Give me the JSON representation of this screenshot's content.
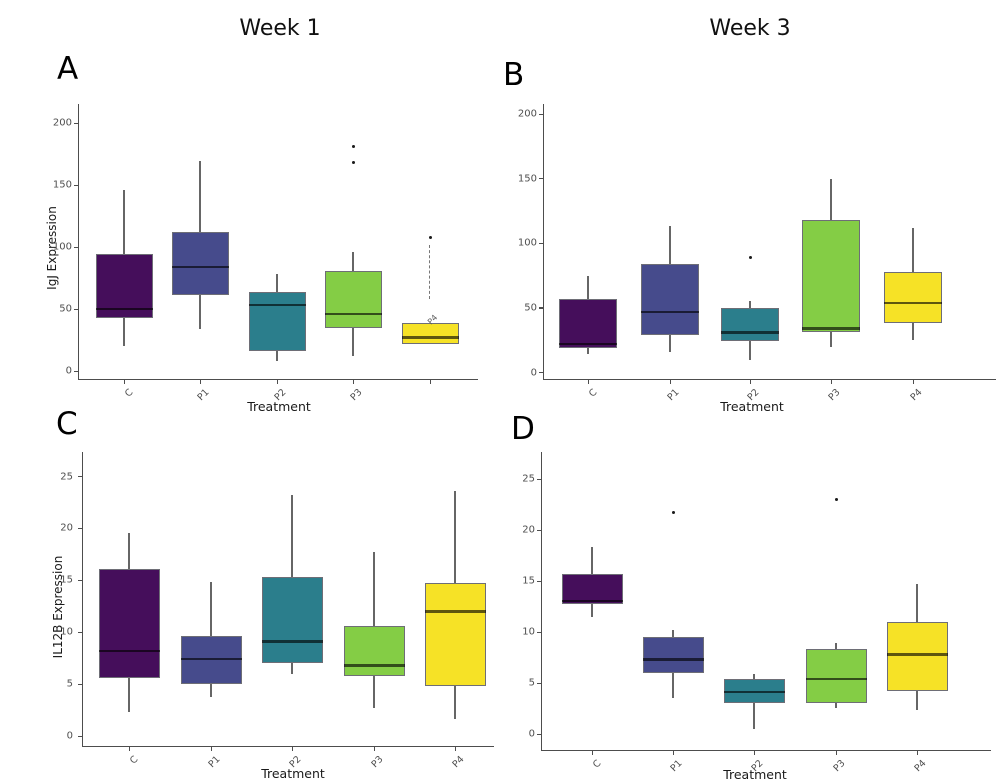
{
  "titles": {
    "week1": "Week 1",
    "week3": "Week 3"
  },
  "colors": {
    "C": "#450E5B",
    "P1": "#464B8C",
    "P2": "#2B7E8C",
    "P3": "#84CD45",
    "P4": "#F6E226",
    "box_border": "#6e6e76",
    "median": "rgba(0,0,0,0.62)",
    "whisker": "#666666",
    "axis_line": "#4d4d4d",
    "tick_label": "#4f4f4f",
    "axis_title": "#1a1a1a",
    "outlier": "#1a1a1a"
  },
  "chart_data": [
    {
      "type": "box",
      "panel": "A",
      "column_title": "Week 1",
      "ylabel": "IgJ Expression",
      "xlabel": "Treatment",
      "ylim": [
        0,
        215
      ],
      "yticks": [
        0,
        50,
        100,
        150,
        200
      ],
      "categories": [
        "C",
        "P1",
        "P2",
        "P3",
        "P4"
      ],
      "x_tick_labels": [
        "C",
        "P1",
        "P2",
        "P3",
        null
      ],
      "boxes": [
        {
          "category": "C",
          "color_key": "C",
          "whisker_lo": 20,
          "q1": 43,
          "median": 50,
          "q3": 94,
          "whisker_hi": 146,
          "outliers": []
        },
        {
          "category": "P1",
          "color_key": "P1",
          "whisker_lo": 34,
          "q1": 61,
          "median": 84,
          "q3": 112,
          "whisker_hi": 169,
          "outliers": []
        },
        {
          "category": "P2",
          "color_key": "P2",
          "whisker_lo": 8,
          "q1": 16,
          "median": 53,
          "q3": 64,
          "whisker_hi": 78,
          "outliers": []
        },
        {
          "category": "P3",
          "color_key": "P3",
          "whisker_lo": 12,
          "q1": 35,
          "median": 46,
          "q3": 81,
          "whisker_hi": 96,
          "outliers": [
            168,
            181
          ]
        },
        {
          "category": "P4",
          "color_key": "P4",
          "whisker_lo": null,
          "q1": 22,
          "median": 27,
          "q3": 39,
          "whisker_hi": 102,
          "whisker_hi_from": 58,
          "whisker_hi_dashed": true,
          "outliers": [
            108
          ]
        }
      ],
      "annotations": [
        {
          "text": "P4",
          "category_index": 4,
          "y": 47
        }
      ]
    },
    {
      "type": "box",
      "panel": "B",
      "column_title": "Week 3",
      "ylabel": null,
      "xlabel": "Treatment",
      "ylim": [
        0,
        215
      ],
      "yticks": [
        0,
        50,
        100,
        150,
        200
      ],
      "categories": [
        "C",
        "P1",
        "P2",
        "P3",
        "P4"
      ],
      "x_tick_labels": [
        "C",
        "P1",
        "P2",
        "P3",
        "P4"
      ],
      "boxes": [
        {
          "category": "C",
          "color_key": "C",
          "whisker_lo": 14,
          "q1": 19,
          "median": 22,
          "q3": 57,
          "whisker_hi": 75,
          "outliers": []
        },
        {
          "category": "P1",
          "color_key": "P1",
          "whisker_lo": 16,
          "q1": 29,
          "median": 47,
          "q3": 84,
          "whisker_hi": 113,
          "outliers": []
        },
        {
          "category": "P2",
          "color_key": "P2",
          "whisker_lo": 10,
          "q1": 24,
          "median": 31,
          "q3": 50,
          "whisker_hi": 55,
          "outliers": [
            89
          ]
        },
        {
          "category": "P3",
          "color_key": "P3",
          "whisker_lo": 20,
          "q1": 31,
          "median": 34,
          "q3": 118,
          "whisker_hi": 150,
          "outliers": []
        },
        {
          "category": "P4",
          "color_key": "P4",
          "whisker_lo": 25,
          "q1": 38,
          "median": 54,
          "q3": 78,
          "whisker_hi": 112,
          "outliers": []
        }
      ],
      "annotations": []
    },
    {
      "type": "box",
      "panel": "C",
      "column_title": "Week 1",
      "ylabel": "IL12B Expression",
      "xlabel": "Treatment",
      "ylim": [
        0,
        26.5
      ],
      "yticks": [
        0,
        5,
        10,
        15,
        20,
        25
      ],
      "categories": [
        "C",
        "P1",
        "P2",
        "P3",
        "P4"
      ],
      "x_tick_labels": [
        "C",
        "P1",
        "P2",
        "P3",
        "P4"
      ],
      "boxes": [
        {
          "category": "C",
          "color_key": "C",
          "whisker_lo": 2.3,
          "q1": 5.6,
          "median": 8.2,
          "q3": 16.1,
          "whisker_hi": 19.6,
          "outliers": []
        },
        {
          "category": "P1",
          "color_key": "P1",
          "whisker_lo": 3.8,
          "q1": 5.0,
          "median": 7.4,
          "q3": 9.6,
          "whisker_hi": 14.8,
          "outliers": []
        },
        {
          "category": "P2",
          "color_key": "P2",
          "whisker_lo": 6.0,
          "q1": 7.0,
          "median": 9.1,
          "q3": 15.3,
          "whisker_hi": 23.2,
          "outliers": []
        },
        {
          "category": "P3",
          "color_key": "P3",
          "whisker_lo": 2.7,
          "q1": 5.8,
          "median": 6.8,
          "q3": 10.6,
          "whisker_hi": 17.7,
          "outliers": []
        },
        {
          "category": "P4",
          "color_key": "P4",
          "whisker_lo": 1.6,
          "q1": 4.8,
          "median": 12.0,
          "q3": 14.7,
          "whisker_hi": 23.6,
          "outliers": []
        }
      ],
      "annotations": []
    },
    {
      "type": "box",
      "panel": "D",
      "column_title": "Week 3",
      "ylabel": null,
      "xlabel": "Treatment",
      "ylim": [
        0,
        26.5
      ],
      "yticks": [
        0,
        5,
        10,
        15,
        20,
        25
      ],
      "categories": [
        "C",
        "P1",
        "P2",
        "P3",
        "P4"
      ],
      "x_tick_labels": [
        "C",
        "P1",
        "P2",
        "P3",
        "P4"
      ],
      "boxes": [
        {
          "category": "C",
          "color_key": "C",
          "whisker_lo": 11.5,
          "q1": 12.7,
          "median": 13.0,
          "q3": 15.7,
          "whisker_hi": 18.3,
          "outliers": []
        },
        {
          "category": "P1",
          "color_key": "P1",
          "whisker_lo": 3.5,
          "q1": 6.0,
          "median": 7.3,
          "q3": 9.5,
          "whisker_hi": 10.2,
          "outliers": [
            21.7
          ]
        },
        {
          "category": "P2",
          "color_key": "P2",
          "whisker_lo": 0.5,
          "q1": 3.0,
          "median": 4.1,
          "q3": 5.4,
          "whisker_hi": 5.9,
          "outliers": []
        },
        {
          "category": "P3",
          "color_key": "P3",
          "whisker_lo": 2.5,
          "q1": 3.0,
          "median": 5.4,
          "q3": 8.3,
          "whisker_hi": 8.9,
          "outliers": [
            23.0
          ]
        },
        {
          "category": "P4",
          "color_key": "P4",
          "whisker_lo": 2.4,
          "q1": 4.2,
          "median": 7.8,
          "q3": 11.0,
          "whisker_hi": 14.7,
          "outliers": []
        }
      ],
      "annotations": []
    }
  ]
}
